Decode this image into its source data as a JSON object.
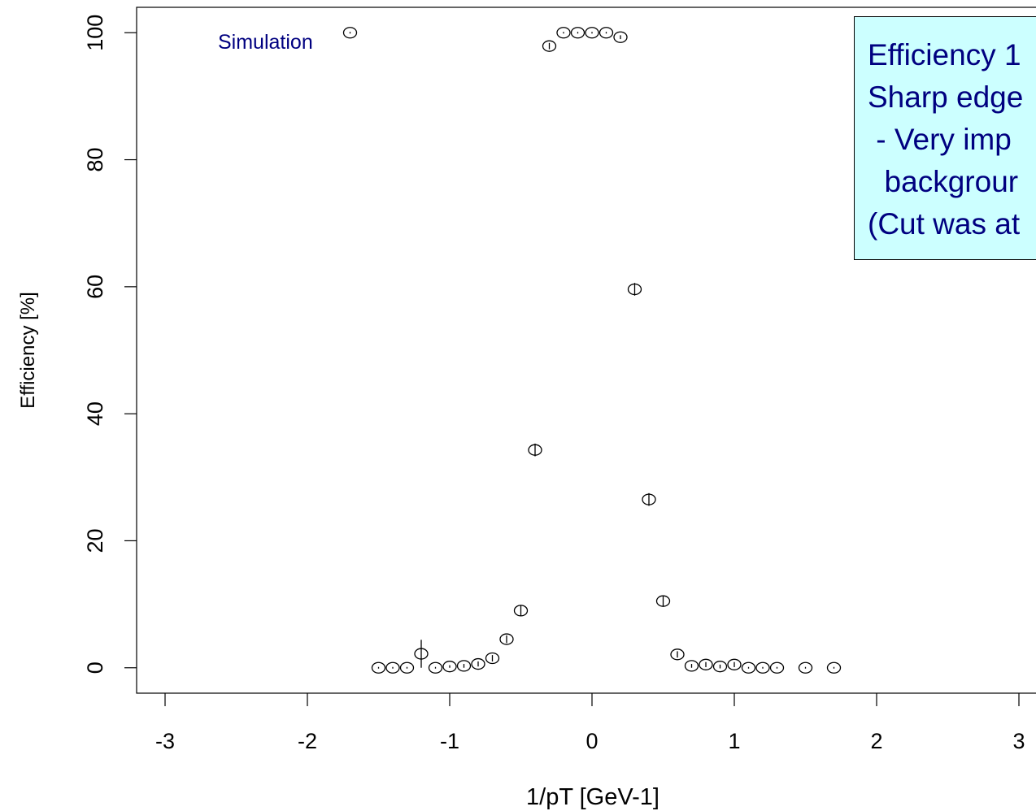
{
  "chart_data": {
    "type": "scatter",
    "title": "",
    "xlabel": "1/pT [GeV-1]",
    "ylabel": "Efficiency [%]",
    "xlim": [
      -3.2,
      3.2
    ],
    "ylim": [
      -4,
      104
    ],
    "xticks": [
      "-3",
      "-2",
      "-1",
      "0",
      "1",
      "2",
      "3"
    ],
    "yticks": [
      "0",
      "20",
      "40",
      "60",
      "80",
      "100"
    ],
    "annotation": "Simulation",
    "grid": false,
    "marker": "open-circle-with-error-bar",
    "color": "#000000",
    "points": [
      {
        "x": -1.7,
        "y": 100,
        "err": 0
      },
      {
        "x": -1.5,
        "y": 0,
        "err": 0
      },
      {
        "x": -1.4,
        "y": 0,
        "err": 0
      },
      {
        "x": -1.3,
        "y": 0,
        "err": 0
      },
      {
        "x": -1.2,
        "y": 2.2,
        "err": 2.2
      },
      {
        "x": -1.1,
        "y": 0,
        "err": 0
      },
      {
        "x": -1.0,
        "y": 0.2,
        "err": 0.2
      },
      {
        "x": -0.9,
        "y": 0.3,
        "err": 0.3
      },
      {
        "x": -0.8,
        "y": 0.6,
        "err": 0.4
      },
      {
        "x": -0.7,
        "y": 1.5,
        "err": 0.5
      },
      {
        "x": -0.6,
        "y": 4.5,
        "err": 0.6
      },
      {
        "x": -0.5,
        "y": 9.0,
        "err": 0.8
      },
      {
        "x": -0.4,
        "y": 34.3,
        "err": 1.0
      },
      {
        "x": -0.3,
        "y": 97.9,
        "err": 0.5
      },
      {
        "x": -0.2,
        "y": 100,
        "err": 0
      },
      {
        "x": -0.1,
        "y": 100,
        "err": 0
      },
      {
        "x": 0.0,
        "y": 100,
        "err": 0
      },
      {
        "x": 0.1,
        "y": 100,
        "err": 0
      },
      {
        "x": 0.2,
        "y": 99.3,
        "err": 0.3
      },
      {
        "x": 0.3,
        "y": 59.6,
        "err": 1.0
      },
      {
        "x": 0.4,
        "y": 26.5,
        "err": 1.0
      },
      {
        "x": 0.5,
        "y": 10.5,
        "err": 0.8
      },
      {
        "x": 0.6,
        "y": 2.1,
        "err": 0.5
      },
      {
        "x": 0.7,
        "y": 0.3,
        "err": 0.3
      },
      {
        "x": 0.8,
        "y": 0.5,
        "err": 0.4
      },
      {
        "x": 0.9,
        "y": 0.2,
        "err": 0.3
      },
      {
        "x": 1.0,
        "y": 0.5,
        "err": 0.4
      },
      {
        "x": 1.1,
        "y": 0,
        "err": 0
      },
      {
        "x": 1.2,
        "y": 0,
        "err": 0
      },
      {
        "x": 1.3,
        "y": 0,
        "err": 0
      },
      {
        "x": 1.5,
        "y": 0,
        "err": 0
      },
      {
        "x": 1.7,
        "y": 0,
        "err": 0
      }
    ]
  },
  "note": {
    "lines": [
      "Efficiency 1",
      "Sharp edge",
      " - Very imp",
      "  backgrour",
      "(Cut was at"
    ],
    "background": "#ccffff",
    "text_color": "#000080"
  }
}
